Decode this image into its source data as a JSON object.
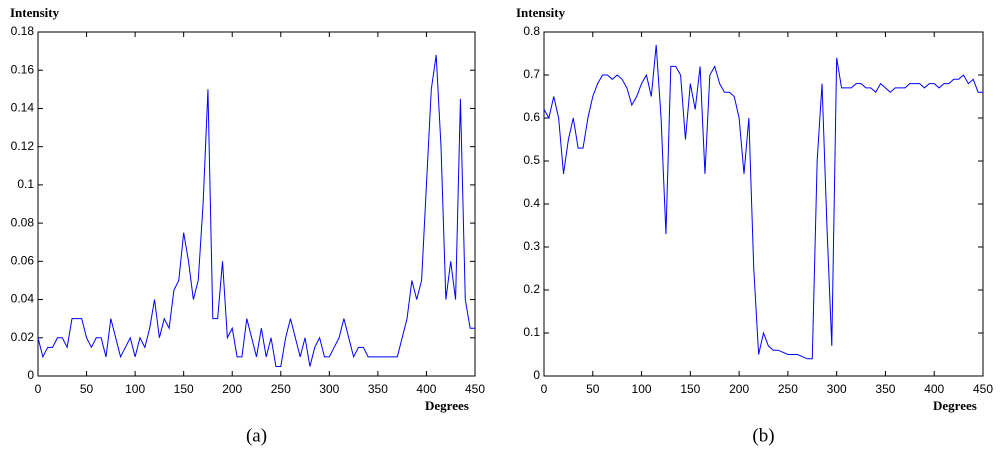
{
  "chart_data": [
    {
      "type": "line",
      "ylabel": "Intensity",
      "xlabel": "Degrees",
      "caption": "(a)",
      "xlim": [
        0,
        450
      ],
      "xticks": [
        0,
        50,
        100,
        150,
        200,
        250,
        300,
        350,
        400,
        450
      ],
      "ylim": [
        0,
        0.18
      ],
      "yticks": [
        0,
        0.02,
        0.04,
        0.06,
        0.08,
        0.1,
        0.12,
        0.14,
        0.16,
        0.18
      ],
      "series": [
        {
          "color": "#0000ff",
          "x": [
            0,
            5,
            10,
            15,
            20,
            25,
            30,
            35,
            40,
            45,
            50,
            55,
            60,
            65,
            70,
            75,
            80,
            85,
            90,
            95,
            100,
            105,
            110,
            115,
            120,
            125,
            130,
            135,
            140,
            145,
            150,
            155,
            160,
            165,
            170,
            175,
            180,
            185,
            190,
            195,
            200,
            205,
            210,
            215,
            220,
            225,
            230,
            235,
            240,
            245,
            250,
            255,
            260,
            265,
            270,
            275,
            280,
            285,
            290,
            295,
            300,
            305,
            310,
            315,
            320,
            325,
            330,
            335,
            340,
            345,
            350,
            355,
            360,
            365,
            370,
            375,
            380,
            385,
            390,
            395,
            400,
            405,
            410,
            415,
            420,
            425,
            430,
            435,
            440,
            445,
            450
          ],
          "values": [
            0.02,
            0.01,
            0.015,
            0.015,
            0.02,
            0.02,
            0.015,
            0.03,
            0.03,
            0.03,
            0.02,
            0.015,
            0.02,
            0.02,
            0.01,
            0.03,
            0.02,
            0.01,
            0.015,
            0.02,
            0.01,
            0.02,
            0.015,
            0.025,
            0.04,
            0.02,
            0.03,
            0.025,
            0.045,
            0.05,
            0.075,
            0.06,
            0.04,
            0.05,
            0.09,
            0.15,
            0.03,
            0.03,
            0.06,
            0.02,
            0.025,
            0.01,
            0.01,
            0.03,
            0.02,
            0.01,
            0.025,
            0.01,
            0.02,
            0.005,
            0.005,
            0.02,
            0.03,
            0.02,
            0.01,
            0.02,
            0.005,
            0.015,
            0.02,
            0.01,
            0.01,
            0.015,
            0.02,
            0.03,
            0.02,
            0.01,
            0.015,
            0.015,
            0.01,
            0.01,
            0.01,
            0.01,
            0.01,
            0.01,
            0.01,
            0.02,
            0.03,
            0.05,
            0.04,
            0.05,
            0.1,
            0.15,
            0.168,
            0.12,
            0.04,
            0.06,
            0.04,
            0.145,
            0.04,
            0.025,
            0.025
          ]
        }
      ]
    },
    {
      "type": "line",
      "ylabel": "Intensity",
      "xlabel": "Degrees",
      "caption": "(b)",
      "xlim": [
        0,
        450
      ],
      "xticks": [
        0,
        50,
        100,
        150,
        200,
        250,
        300,
        350,
        400,
        450
      ],
      "ylim": [
        0,
        0.8
      ],
      "yticks": [
        0,
        0.1,
        0.2,
        0.3,
        0.4,
        0.5,
        0.6,
        0.7,
        0.8
      ],
      "series": [
        {
          "color": "#0000ff",
          "x": [
            0,
            5,
            10,
            15,
            20,
            25,
            30,
            35,
            40,
            45,
            50,
            55,
            60,
            65,
            70,
            75,
            80,
            85,
            90,
            95,
            100,
            105,
            110,
            115,
            120,
            125,
            130,
            135,
            140,
            145,
            150,
            155,
            160,
            165,
            170,
            175,
            180,
            185,
            190,
            195,
            200,
            205,
            210,
            215,
            220,
            225,
            230,
            235,
            240,
            245,
            250,
            255,
            260,
            265,
            270,
            275,
            280,
            285,
            290,
            295,
            300,
            305,
            310,
            315,
            320,
            325,
            330,
            335,
            340,
            345,
            350,
            355,
            360,
            365,
            370,
            375,
            380,
            385,
            390,
            395,
            400,
            405,
            410,
            415,
            420,
            425,
            430,
            435,
            440,
            445,
            450
          ],
          "values": [
            0.62,
            0.6,
            0.65,
            0.6,
            0.47,
            0.55,
            0.6,
            0.53,
            0.53,
            0.6,
            0.65,
            0.68,
            0.7,
            0.7,
            0.69,
            0.7,
            0.69,
            0.67,
            0.63,
            0.65,
            0.68,
            0.7,
            0.65,
            0.77,
            0.6,
            0.33,
            0.72,
            0.72,
            0.7,
            0.55,
            0.68,
            0.62,
            0.72,
            0.47,
            0.7,
            0.72,
            0.68,
            0.66,
            0.66,
            0.65,
            0.6,
            0.47,
            0.6,
            0.25,
            0.05,
            0.1,
            0.07,
            0.06,
            0.06,
            0.055,
            0.05,
            0.05,
            0.05,
            0.045,
            0.04,
            0.04,
            0.5,
            0.68,
            0.35,
            0.07,
            0.74,
            0.67,
            0.67,
            0.67,
            0.68,
            0.68,
            0.67,
            0.67,
            0.66,
            0.68,
            0.67,
            0.66,
            0.67,
            0.67,
            0.67,
            0.68,
            0.68,
            0.68,
            0.67,
            0.68,
            0.68,
            0.67,
            0.68,
            0.68,
            0.69,
            0.69,
            0.7,
            0.68,
            0.69,
            0.66,
            0.66
          ]
        }
      ]
    }
  ]
}
